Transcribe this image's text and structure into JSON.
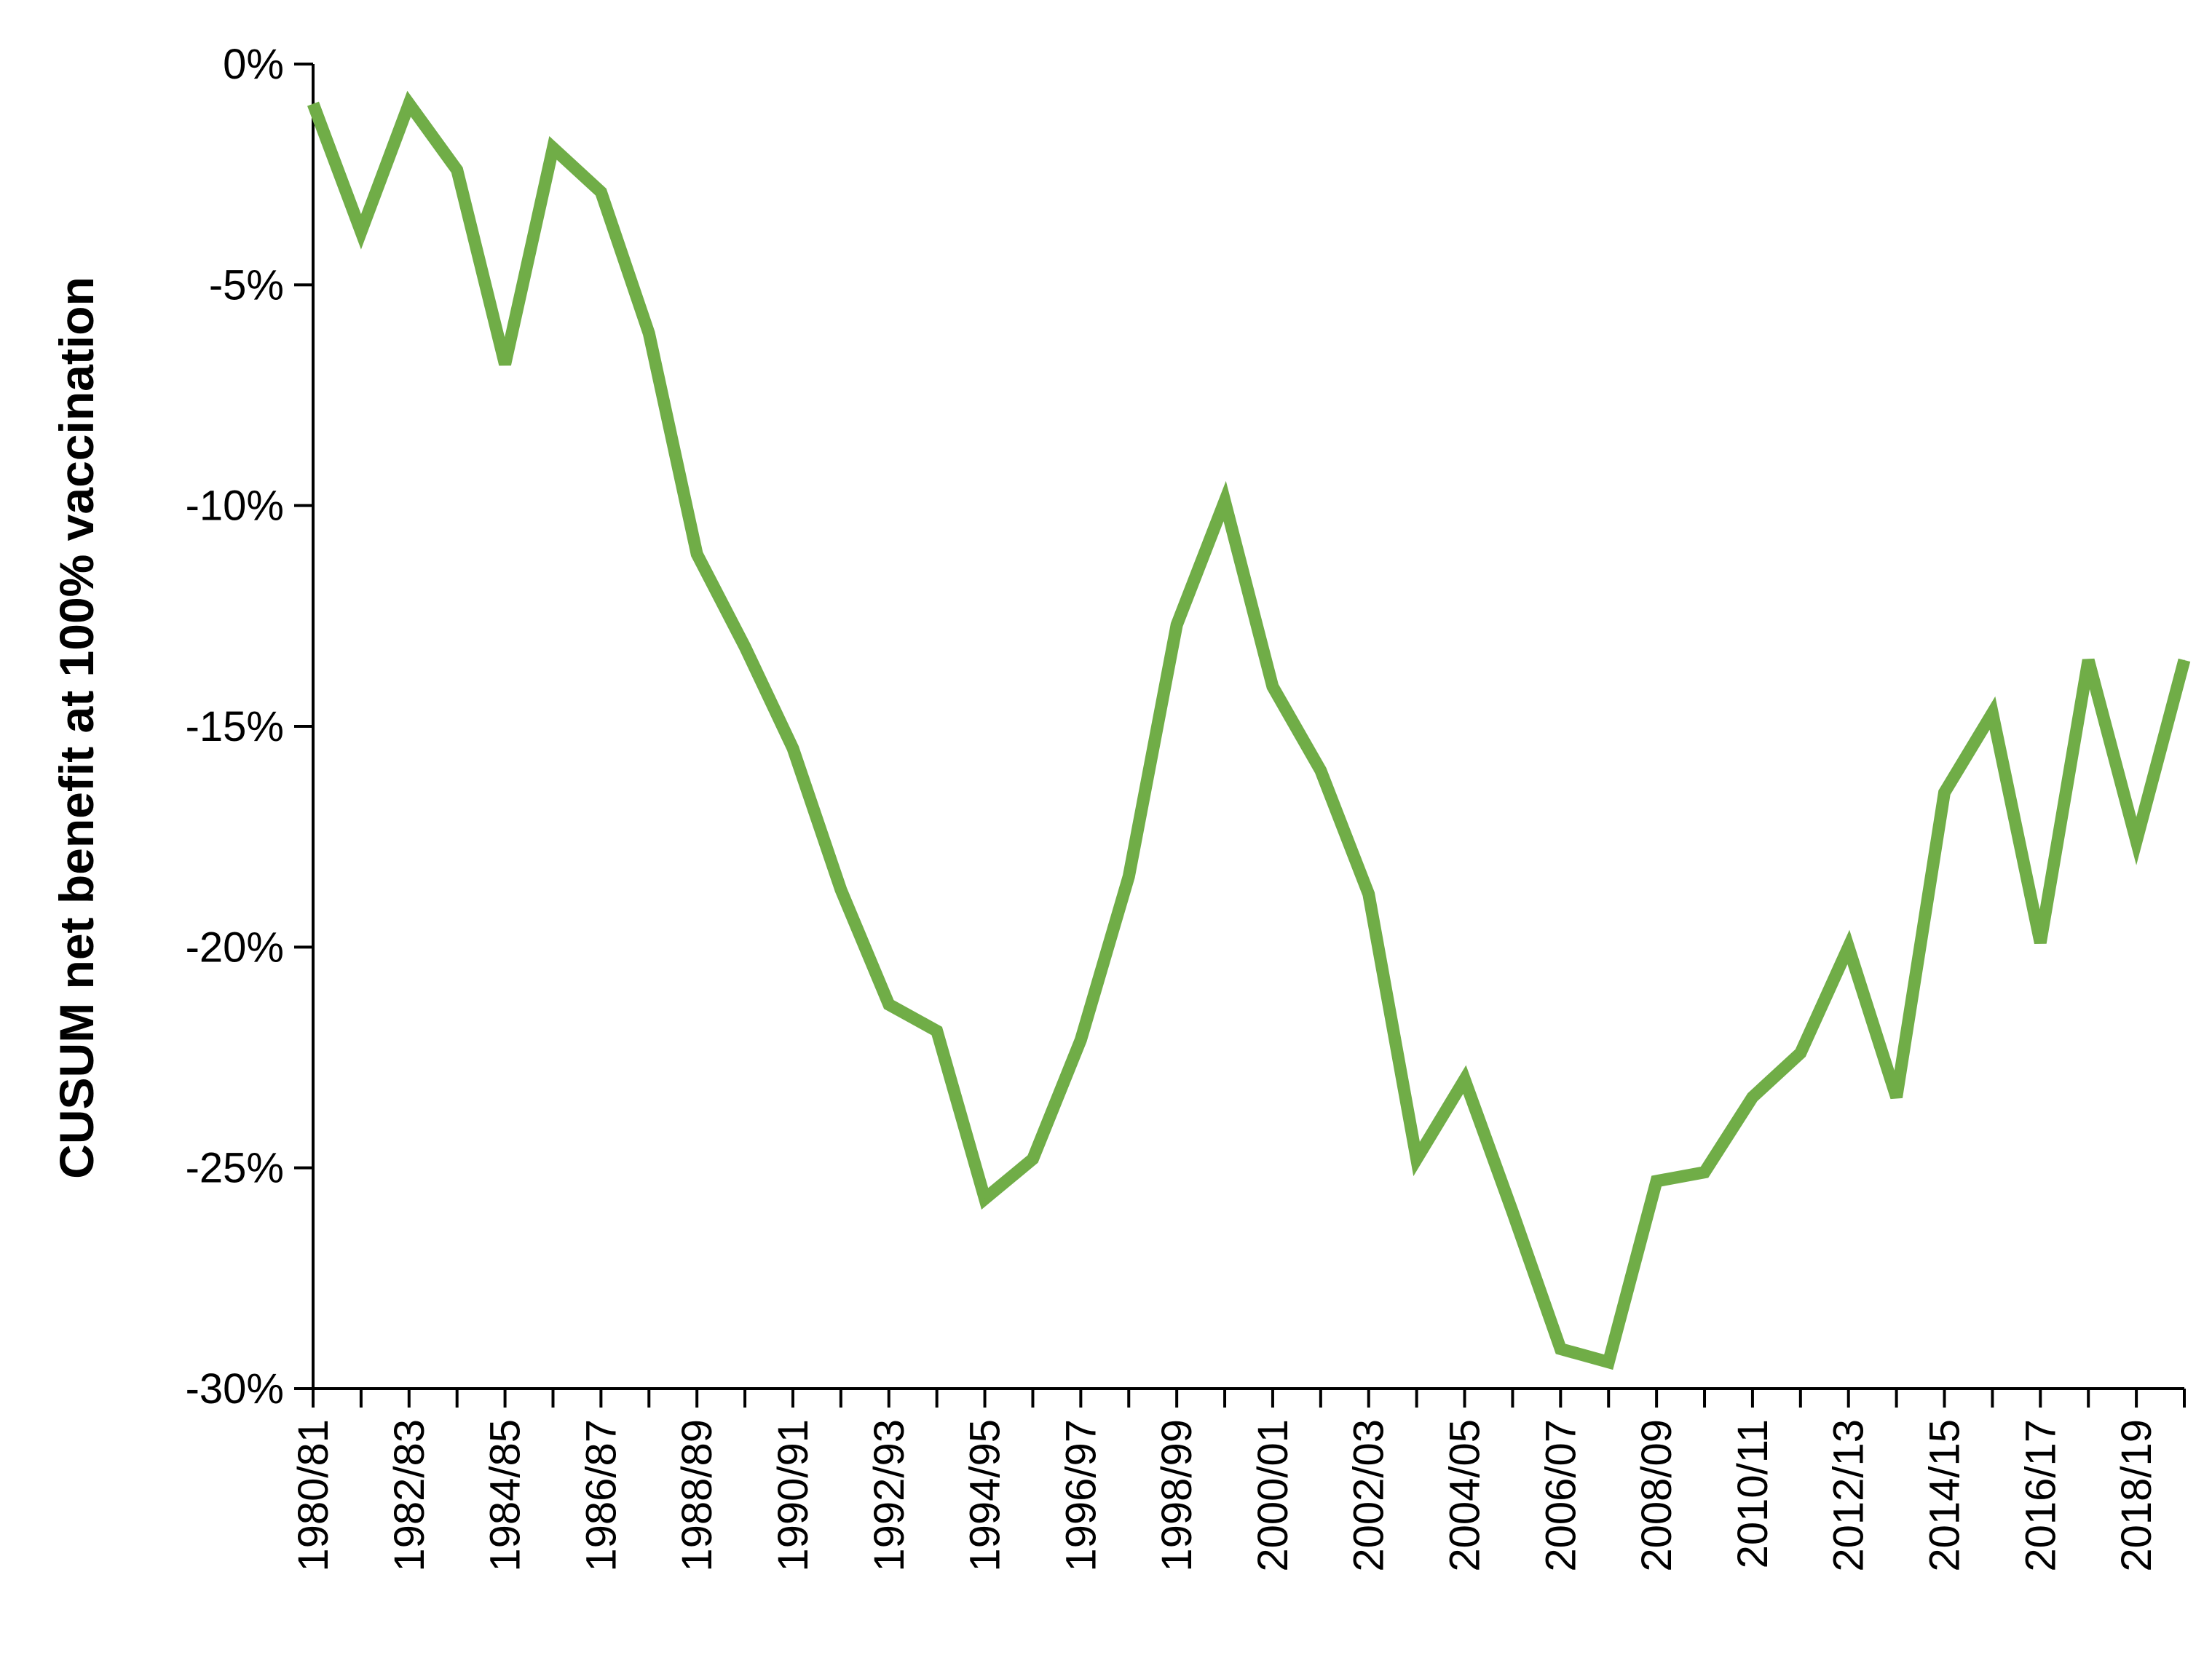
{
  "chart_data": {
    "type": "line",
    "title": "",
    "xlabel": "",
    "ylabel": "CUSUM net benefit at 100% vaccination",
    "ylim": [
      -30,
      0
    ],
    "yticks": [
      0,
      -5,
      -10,
      -15,
      -20,
      -25,
      -30
    ],
    "ytick_labels": [
      "0%",
      "-5%",
      "-10%",
      "-15%",
      "-20%",
      "-25%",
      "-30%"
    ],
    "grid": false,
    "legend": "none",
    "categories": [
      "1980/81",
      "1981/82",
      "1982/83",
      "1983/84",
      "1984/85",
      "1985/86",
      "1986/87",
      "1987/88",
      "1988/89",
      "1989/90",
      "1990/91",
      "1991/92",
      "1992/93",
      "1993/94",
      "1994/95",
      "1995/96",
      "1996/97",
      "1997/98",
      "1998/99",
      "1999/00",
      "2000/01",
      "2001/02",
      "2002/03",
      "2003/04",
      "2004/05",
      "2005/06",
      "2006/07",
      "2007/08",
      "2008/09",
      "2009/10",
      "2010/11",
      "2011/12",
      "2012/13",
      "2013/14",
      "2014/15",
      "2015/16",
      "2016/17",
      "2017/18",
      "2018/19",
      "2019/20"
    ],
    "visible_x_labels": [
      "1980/81",
      "1982/83",
      "1984/85",
      "1986/87",
      "1988/89",
      "1990/91",
      "1992/93",
      "1994/95",
      "1996/97",
      "1998/99",
      "2000/01",
      "2002/03",
      "2004/05",
      "2006/07",
      "2008/09",
      "2010/11",
      "2012/13",
      "2014/15",
      "2016/17",
      "2018/19"
    ],
    "series": [
      {
        "values": [
          -0.9,
          -3.8,
          -0.9,
          -2.4,
          -6.8,
          -1.9,
          -2.9,
          -6.1,
          -11.1,
          -13.2,
          -15.5,
          -18.7,
          -21.3,
          -21.9,
          -25.7,
          -24.8,
          -22.1,
          -18.4,
          -12.7,
          -9.9,
          -14.1,
          -16.0,
          -18.8,
          -24.8,
          -23.0,
          -26.0,
          -29.1,
          -29.4,
          -25.3,
          -25.1,
          -23.4,
          -22.4,
          -20.0,
          -23.4,
          -16.5,
          -14.7,
          -19.9,
          -13.5,
          -17.6,
          -13.5
        ],
        "color": "#70AD47"
      }
    ]
  }
}
